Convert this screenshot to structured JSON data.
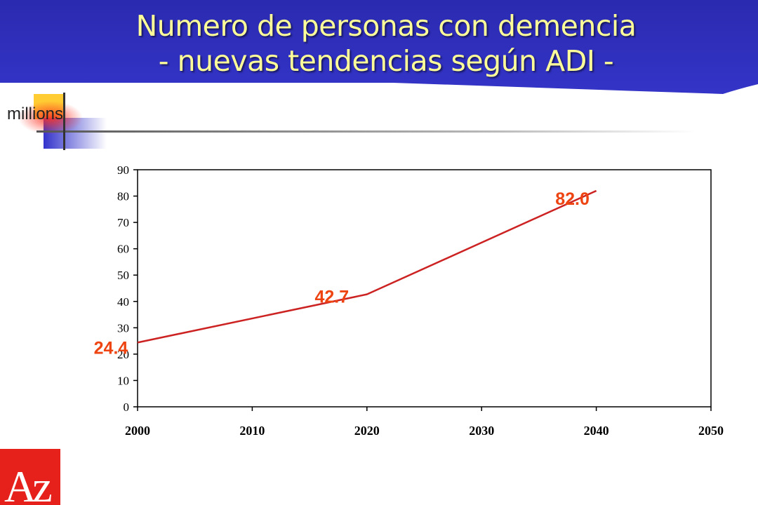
{
  "slide": {
    "title_line1": "Numero de personas con demencia",
    "title_line2": "- nuevas tendencias según ADI -",
    "unit_label": "millions",
    "logo_text": "Az",
    "colors": {
      "banner": "#2b2bb8",
      "title_text": "#ffff99",
      "series_line": "#cc2222",
      "data_label": "#ee4411",
      "accent_yellow": "#ffcc33",
      "accent_red": "#ff3322",
      "accent_blue": "#3333cc"
    }
  },
  "chart_data": {
    "type": "line",
    "x": [
      2000,
      2020,
      2040
    ],
    "series": [
      {
        "values": [
          24.4,
          42.7,
          82.0
        ]
      }
    ],
    "data_labels": [
      "24.4",
      "42.7",
      "82.0"
    ],
    "xticks": [
      2000,
      2010,
      2020,
      2030,
      2040,
      2050
    ],
    "yticks": [
      0,
      10,
      20,
      30,
      40,
      50,
      60,
      70,
      80,
      90
    ],
    "xlim": [
      2000,
      2050
    ],
    "ylim": [
      0,
      90
    ],
    "grid": false,
    "legend": "none"
  }
}
